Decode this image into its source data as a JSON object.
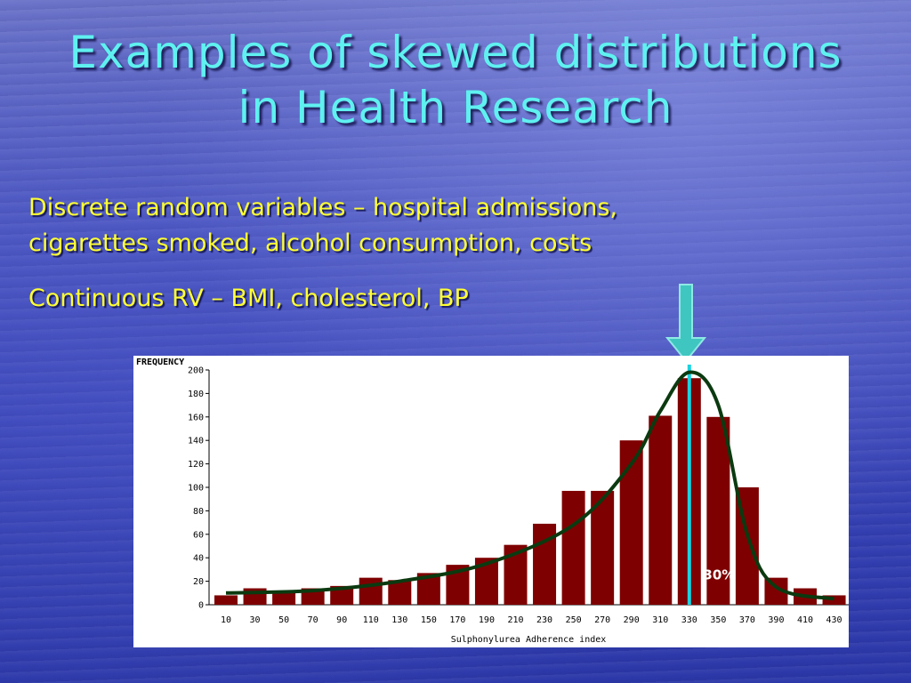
{
  "slide": {
    "title_line1": "Examples of skewed distributions",
    "title_line2": "in Health Research",
    "bullet1_line1": "Discrete random variables – hospital admissions,",
    "bullet1_line2": "cigarettes smoked, alcohol consumption, costs",
    "bullet2": "Continuous RV – BMI, cholesterol, BP"
  },
  "colors": {
    "title": "#5ff0f0",
    "bullet": "#ffff33",
    "bar": "#7f0000",
    "curve": "#0b3a10",
    "marker": "#19d3e0",
    "arrow": "#3fc6c0"
  },
  "chart_data": {
    "type": "bar",
    "ylabel": "FREQUENCY",
    "xlabel": "Sulphonylurea Adherence index",
    "ylim": [
      0,
      200
    ],
    "yticks": [
      0,
      20,
      40,
      60,
      80,
      100,
      120,
      140,
      160,
      180,
      200
    ],
    "categories": [
      "10",
      "30",
      "50",
      "70",
      "90",
      "110",
      "130",
      "150",
      "170",
      "190",
      "210",
      "230",
      "250",
      "270",
      "290",
      "310",
      "330",
      "350",
      "370",
      "390",
      "410",
      "430"
    ],
    "values": [
      8,
      14,
      11,
      14,
      16,
      23,
      21,
      27,
      34,
      40,
      51,
      69,
      97,
      97,
      140,
      161,
      193,
      160,
      100,
      23,
      14,
      8
    ],
    "fitted_curve": [
      [
        10,
        10
      ],
      [
        70,
        12
      ],
      [
        130,
        20
      ],
      [
        190,
        35
      ],
      [
        250,
        68
      ],
      [
        290,
        120
      ],
      [
        310,
        165
      ],
      [
        330,
        198
      ],
      [
        350,
        170
      ],
      [
        370,
        60
      ],
      [
        390,
        15
      ],
      [
        430,
        5
      ]
    ],
    "marker_x": 330,
    "annotation": "30%",
    "grid": false
  }
}
